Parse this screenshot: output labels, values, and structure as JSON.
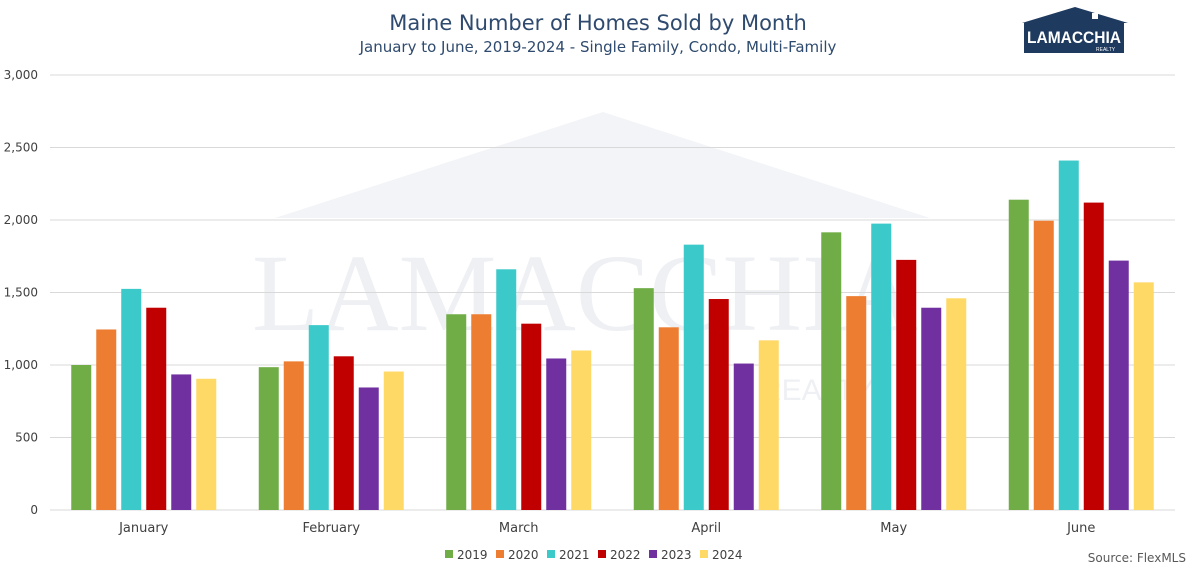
{
  "chart_data": {
    "type": "bar",
    "title": "Maine Number of Homes Sold by Month",
    "subtitle": "January to June, 2019-2024 - Single Family, Condo, Multi-Family",
    "categories": [
      "January",
      "February",
      "March",
      "April",
      "May",
      "June"
    ],
    "series": [
      {
        "name": "2019",
        "color": "#70ad47",
        "values": [
          1000,
          985,
          1350,
          1530,
          1915,
          2140
        ]
      },
      {
        "name": "2020",
        "color": "#ed7d31",
        "values": [
          1245,
          1025,
          1350,
          1260,
          1475,
          1995
        ]
      },
      {
        "name": "2021",
        "color": "#3cc9c9",
        "values": [
          1525,
          1275,
          1660,
          1830,
          1975,
          2410
        ]
      },
      {
        "name": "2022",
        "color": "#c00000",
        "values": [
          1395,
          1060,
          1285,
          1455,
          1725,
          2120
        ]
      },
      {
        "name": "2023",
        "color": "#7030a0",
        "values": [
          935,
          845,
          1045,
          1010,
          1395,
          1720
        ]
      },
      {
        "name": "2024",
        "color": "#ffd966",
        "values": [
          905,
          955,
          1100,
          1170,
          1460,
          1570
        ]
      }
    ],
    "ylim": [
      0,
      3000
    ],
    "yticks": [
      0,
      500,
      1000,
      1500,
      2000,
      2500,
      3000
    ],
    "ytick_labels": [
      "0",
      "500",
      "1,000",
      "1,500",
      "2,000",
      "2,500",
      "3,000"
    ],
    "grid": true,
    "legend_position": "bottom"
  },
  "source": "Source: FlexMLS",
  "logo": {
    "name": "LAMACCHIA",
    "sub": "REALTY"
  },
  "watermark": {
    "name": "LAMACCHIA",
    "sub": "REALTY"
  }
}
